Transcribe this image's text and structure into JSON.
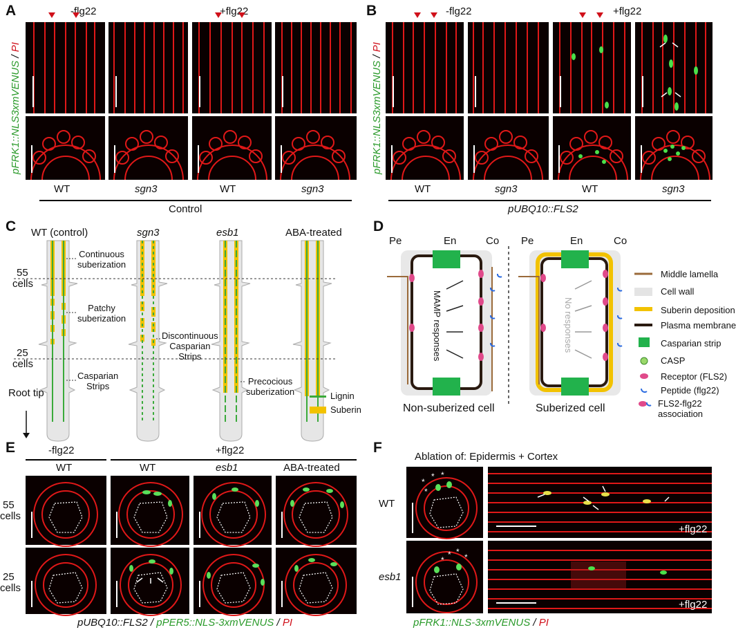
{
  "panelA": {
    "letter": "A",
    "cond_minus": "-flg22",
    "cond_plus": "+flg22",
    "ylabel_green": "pFRK1::NLS3xmVENUS",
    "ylabel_sep": " / ",
    "ylabel_red": "PI",
    "genotypes": [
      "WT",
      "sgn3",
      "WT",
      "sgn3"
    ],
    "group": "Control"
  },
  "panelB": {
    "letter": "B",
    "cond_minus": "-flg22",
    "cond_plus": "+flg22",
    "ylabel_green": "pFRK1::NLS3xmVENUS",
    "ylabel_sep": " / ",
    "ylabel_red": "PI",
    "genotypes": [
      "WT",
      "sgn3",
      "WT",
      "sgn3"
    ],
    "group": "pUBQ10::FLS2"
  },
  "panelC": {
    "letter": "C",
    "columns": [
      "WT (control)",
      "sgn3",
      "esb1",
      "ABA-treated"
    ],
    "cells55_a": "55",
    "cells55_b": "cells",
    "cells25_a": "25",
    "cells25_b": "cells",
    "root_tip": "Root tip",
    "ann_continuous_1": "Continuous",
    "ann_continuous_2": "suberization",
    "ann_patchy_1": "Patchy",
    "ann_patchy_2": "suberization",
    "ann_casparian_1": "Casparian",
    "ann_casparian_2": "Strips",
    "ann_discont_1": "Discontinuous",
    "ann_discont_2": "Casparian",
    "ann_discont_3": "Strips",
    "ann_precocious_1": "Precocious",
    "ann_precocious_2": "suberization",
    "legend_lignin": "Lignin",
    "legend_suberin": "Suberin",
    "colors": {
      "lignin": "#3aaa3a",
      "suberin": "#f2c200",
      "root": "#e6e6e6"
    }
  },
  "panelD": {
    "letter": "D",
    "pe": "Pe",
    "en": "En",
    "co": "Co",
    "mamp": "MAMP responses",
    "no_resp": "No responses",
    "nonsuberized": "Non-suberized cell",
    "suberized": "Suberized cell",
    "legend": [
      "Middle lamella",
      "Cell wall",
      "Suberin deposition",
      "Plasma membrane",
      "Casparian strip",
      "CASP",
      "Receptor (FLS2)",
      "Peptide (flg22)",
      "FLS2-flg22",
      "association"
    ]
  },
  "panelE": {
    "letter": "E",
    "cond_minus": "-flg22",
    "cond_plus": "+flg22",
    "genotypes": [
      "WT",
      "WT",
      "esb1",
      "ABA-treated"
    ],
    "row1_a": "55",
    "row1_b": "cells",
    "row2_a": "25",
    "row2_b": "cells",
    "caption_1": "pUBQ10::FLS2",
    "caption_sep1": " / ",
    "caption_2": "pPER5::NLS-3xmVENUS",
    "caption_sep2": " / ",
    "caption_3": "PI"
  },
  "panelF": {
    "letter": "F",
    "title": "Ablation of: Epidermis + Cortex",
    "rows": [
      "WT",
      "esb1"
    ],
    "treatment": "+flg22",
    "caption_1": "pFRK1::NLS-3xmVENUS",
    "caption_sep": " / ",
    "caption_2": "PI"
  }
}
